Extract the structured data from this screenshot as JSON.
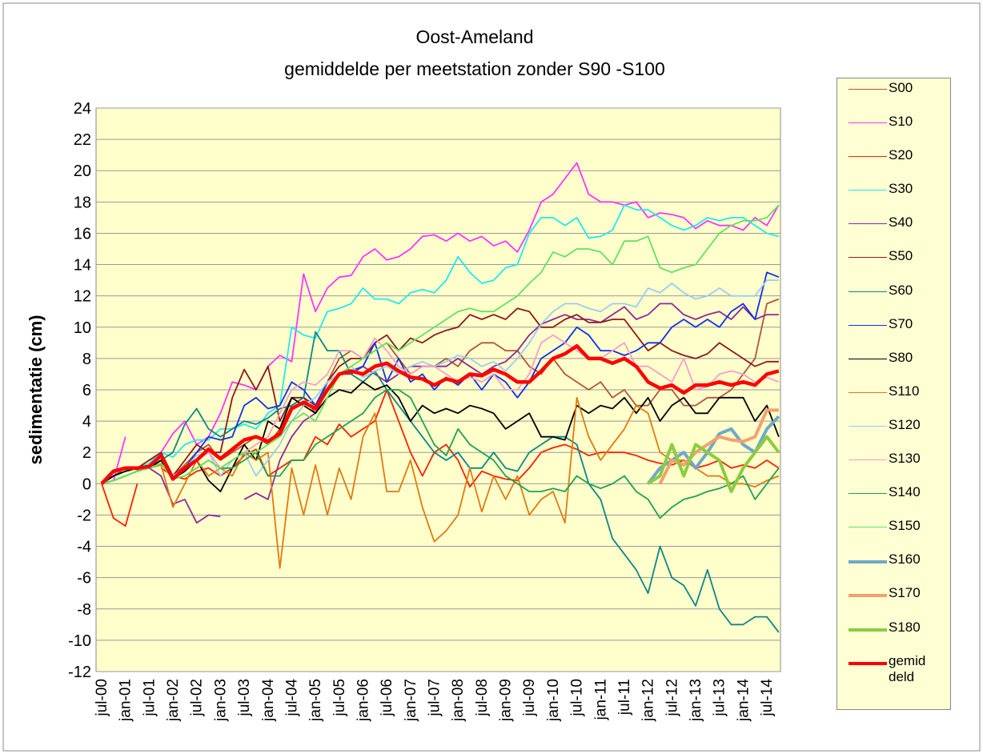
{
  "chart_data": {
    "type": "line",
    "title": "Oost-Ameland",
    "subtitle": "gemiddelde per meetstation zonder S90 -S100",
    "y_label": "sedimentatie (cm)",
    "ylim": [
      -12,
      24
    ],
    "yticks": [
      -12,
      -10,
      -8,
      -6,
      -4,
      -2,
      0,
      2,
      4,
      6,
      8,
      10,
      12,
      14,
      16,
      18,
      20,
      22,
      24
    ],
    "grid": true,
    "categories": [
      "jul-00",
      null,
      "jan-01",
      null,
      "jul-01",
      null,
      "jan-02",
      null,
      "jul-02",
      null,
      "jan-03",
      null,
      "jul-03",
      null,
      "jan-04",
      null,
      "jul-04",
      null,
      "jan-05",
      null,
      "jul-05",
      null,
      "jan-06",
      null,
      "jul-06",
      null,
      "jan-07",
      null,
      "jul-07",
      null,
      "jan-08",
      null,
      "jul-08",
      null,
      "jan-09",
      null,
      "jul-09",
      null,
      "jan-10",
      null,
      "jul-10",
      null,
      "jan-11",
      null,
      "jul-11",
      null,
      "jan-12",
      null,
      "jul-12",
      null,
      "jan-13",
      null,
      "jul-13",
      null,
      "jan-14",
      null,
      "jul-14",
      null
    ],
    "series": [
      {
        "name": "S00",
        "color": "#b0553a",
        "values": [
          0,
          0.5,
          1,
          0.9,
          1,
          1.5,
          0.5,
          1.2,
          2,
          2.5,
          1.5,
          2,
          2.5,
          3,
          2.5,
          3.5,
          5,
          5.5,
          4.5,
          6.5,
          8,
          8.5,
          8,
          8.5,
          9,
          8,
          7,
          7.5,
          7.5,
          8,
          7.5,
          8.5,
          9,
          9,
          8.5,
          8.5,
          7.5,
          7,
          8,
          7,
          6.5,
          6,
          6.5,
          5.5,
          6,
          5,
          5,
          6,
          6,
          5,
          5,
          5.5,
          5.5,
          6,
          7,
          8,
          11.5,
          11.8
        ]
      },
      {
        "name": "S10",
        "color": "#ff33ff",
        "values": [
          0,
          0.2,
          3,
          null,
          1.5,
          2,
          3.2,
          4,
          2.5,
          3,
          4.5,
          6.5,
          6.3,
          6,
          7.5,
          8.2,
          7.8,
          13.4,
          11,
          12.5,
          13.2,
          13.3,
          14.5,
          15,
          14.3,
          14.5,
          15,
          15.8,
          15.9,
          15.5,
          16,
          15.5,
          15.8,
          15.2,
          15.5,
          14.8,
          16.2,
          18,
          18.5,
          19.5,
          20.5,
          18.5,
          18,
          18,
          17.8,
          18,
          17,
          17.3,
          17.2,
          17,
          16.3,
          16.8,
          16.5,
          16.5,
          16.2,
          17,
          16.5,
          17.8
        ]
      },
      {
        "name": "S20",
        "color": "#ff2000",
        "values": [
          0,
          -2.2,
          -2.7,
          0,
          null,
          1,
          0.5,
          0.3,
          0.8,
          1,
          0.5,
          1,
          1.8,
          2.2,
          0.5,
          1,
          1.5,
          1.5,
          3,
          2.5,
          3.8,
          3,
          3.5,
          4,
          6,
          4,
          2,
          0.5,
          2,
          2.5,
          1.5,
          -0.2,
          0.8,
          0.5,
          0.3,
          0.2,
          1,
          2,
          2.3,
          2.5,
          2.2,
          1.8,
          2,
          2,
          2,
          1.8,
          1.5,
          1.3,
          1.2,
          1.5,
          1,
          1.2,
          1.5,
          1,
          1.2,
          1,
          1.5,
          1
        ]
      },
      {
        "name": "S30",
        "color": "#22e8f0",
        "values": [
          0,
          0.5,
          0.8,
          1,
          1.3,
          2,
          1.7,
          2.5,
          2.8,
          2.8,
          3.5,
          3.5,
          3.8,
          3.5,
          4.5,
          5,
          10,
          9.5,
          9.3,
          11,
          11.2,
          11.5,
          12.5,
          11.8,
          11.8,
          11.5,
          12.2,
          12.4,
          12.2,
          13,
          14.5,
          13.5,
          12.8,
          13,
          13.8,
          14,
          16,
          17,
          17,
          16.5,
          17,
          15.7,
          15.8,
          16.2,
          17.8,
          17.5,
          17.5,
          17,
          16.5,
          16.2,
          16.5,
          17,
          16.8,
          17,
          17,
          16.5,
          16,
          15.8
        ]
      },
      {
        "name": "S40",
        "color": "#8a2a9a",
        "values": [
          0,
          0.2,
          0.5,
          0.8,
          1,
          0.5,
          -1.3,
          -1,
          -2.5,
          -2,
          -2.1,
          null,
          -1,
          -0.6,
          -1,
          1.5,
          3,
          4,
          4.5,
          6,
          7,
          7,
          7.5,
          7,
          6.5,
          7,
          7.5,
          7.5,
          7.5,
          7.5,
          8,
          7.5,
          7,
          7.5,
          7.8,
          8.5,
          9.5,
          10.2,
          10.5,
          10.8,
          10.5,
          10.5,
          10.3,
          10.8,
          11.3,
          10.5,
          10.8,
          11.5,
          11.5,
          10.8,
          10.5,
          10.8,
          11,
          10.5,
          11.3,
          10.5,
          10.8,
          10.8
        ]
      },
      {
        "name": "S50",
        "color": "#8b1a1a",
        "values": [
          0,
          0.5,
          0.8,
          1,
          1.5,
          2,
          0.5,
          1.5,
          2.5,
          2,
          2,
          5.5,
          7.3,
          6,
          7.5,
          4,
          5.5,
          5.5,
          5,
          6.5,
          7.5,
          8,
          8,
          9,
          9.5,
          8.5,
          9.3,
          9,
          9.5,
          9.8,
          10,
          10.8,
          10.5,
          10.8,
          10.5,
          11.2,
          11,
          10,
          10,
          10.5,
          10.8,
          10.3,
          10.3,
          10.5,
          10.5,
          9.5,
          8.5,
          9,
          8.5,
          8.2,
          8,
          8.3,
          9,
          8.5,
          8,
          7.5,
          7.8,
          7.8
        ]
      },
      {
        "name": "S60",
        "color": "#0e8585",
        "values": [
          0,
          0.5,
          0.8,
          1,
          1,
          1.5,
          2,
          3.8,
          4.8,
          3.5,
          3,
          3.5,
          4,
          3.8,
          4.2,
          4.8,
          5,
          5.5,
          9.7,
          8.5,
          8.5,
          7,
          6.5,
          7.2,
          6,
          5,
          4,
          3,
          2,
          1.5,
          2,
          1,
          1,
          2,
          1,
          0.8,
          2,
          2.5,
          3,
          3,
          2.5,
          0,
          -1,
          -3.5,
          -4.5,
          -5.5,
          -7,
          -4,
          -6,
          -6.5,
          -7.8,
          -5.5,
          -8,
          -9,
          -9,
          -8.5,
          -8.5,
          -9.5
        ]
      },
      {
        "name": "S70",
        "color": "#1030e8",
        "values": [
          0,
          0.5,
          0.8,
          1,
          1,
          1.5,
          0.5,
          1,
          2,
          3,
          2.8,
          3,
          5,
          5.5,
          4.8,
          5,
          6.5,
          6,
          5,
          6.5,
          7,
          7.2,
          7.5,
          9,
          6.5,
          8,
          6.5,
          7,
          6,
          6.8,
          6.3,
          7,
          6,
          7,
          6.5,
          5.5,
          6.5,
          8,
          8.5,
          9,
          10,
          9.5,
          8.5,
          8.5,
          8.2,
          8.5,
          9,
          9,
          10,
          10.5,
          10,
          10.5,
          10,
          11,
          11.5,
          10.5,
          13.5,
          13.2
        ]
      },
      {
        "name": "S80",
        "color": "#000000",
        "values": [
          0,
          0.5,
          0.8,
          1,
          1,
          1.5,
          0.3,
          0.8,
          1.5,
          0.2,
          -0.5,
          1,
          2.5,
          1.5,
          4,
          3.5,
          5.5,
          5,
          4.5,
          5.5,
          6,
          5.8,
          6.5,
          6,
          6.3,
          5.5,
          4,
          5,
          4.5,
          4.8,
          4.5,
          5,
          4.8,
          4.5,
          3.5,
          4,
          4.5,
          3,
          3,
          2.8,
          5,
          4.5,
          5,
          4.8,
          5.5,
          4.5,
          5.5,
          4,
          5,
          5.5,
          4.5,
          4.5,
          5.5,
          5.5,
          5.5,
          4,
          5,
          3
        ]
      },
      {
        "name": "S110",
        "color": "#e07a10",
        "values": [
          0,
          0.2,
          0.5,
          0.8,
          1,
          1.2,
          -1.5,
          0,
          1.5,
          0.5,
          1,
          0.5,
          2,
          1.5,
          2,
          -5.4,
          1,
          -2,
          1.2,
          -2,
          1,
          -1,
          3,
          4.5,
          -0.5,
          -0.5,
          1.5,
          -1.5,
          -3.7,
          -3,
          -2,
          1,
          -1.8,
          0.5,
          -1,
          0.5,
          -2,
          -1,
          -0.5,
          -2.5,
          5.5,
          3,
          1.5,
          2.5,
          3.5,
          5,
          4.5,
          2,
          1.5,
          1.5,
          1,
          0.5,
          0.5,
          0,
          0,
          -0.2,
          0.2,
          0.5
        ]
      },
      {
        "name": "S120",
        "color": "#9ccbf0",
        "values": [
          0,
          0.2,
          0.5,
          0.8,
          1,
          1.3,
          0.5,
          1,
          1.8,
          2,
          0.5,
          1.5,
          2,
          0.5,
          1.5,
          2.5,
          4,
          5,
          5.5,
          6.5,
          7,
          7.5,
          6.8,
          7.2,
          7.5,
          7,
          7.5,
          7.8,
          7.5,
          7.8,
          8.2,
          8,
          7.5,
          7.8,
          7.2,
          8,
          9,
          10.2,
          11,
          11.5,
          11.5,
          11.2,
          11,
          11.5,
          11.5,
          11.3,
          12.5,
          12.2,
          12.8,
          12.2,
          11.8,
          12,
          12.5,
          12,
          12,
          12,
          13,
          13
        ]
      },
      {
        "name": "S130",
        "color": "#f4a0c8",
        "values": [
          0,
          0.2,
          0.5,
          0.8,
          1,
          1.3,
          0.3,
          1,
          1.5,
          2,
          1,
          1.5,
          2,
          2.5,
          3,
          4.5,
          6,
          6.5,
          6.3,
          7,
          8.5,
          8.5,
          8,
          9.3,
          8.5,
          7.5,
          7,
          7.5,
          7.5,
          7,
          6.5,
          6.8,
          6.5,
          7,
          6,
          6,
          7,
          9,
          9.5,
          9,
          8.5,
          8,
          8,
          8.5,
          9,
          7.5,
          7.5,
          7,
          6.5,
          8,
          6,
          6.2,
          7,
          7.2,
          7,
          6.5,
          6.8,
          6.5
        ]
      },
      {
        "name": "S140",
        "color": "#22a050",
        "values": [
          0,
          0.2,
          0.5,
          0.8,
          1,
          1.3,
          0.3,
          0.5,
          1,
          1.5,
          1,
          1,
          1.5,
          2,
          0.5,
          0.5,
          1.5,
          1.5,
          2.5,
          3,
          3.5,
          4,
          4.5,
          5.5,
          6,
          6,
          5.5,
          4,
          2.5,
          1.8,
          3.5,
          2.5,
          2,
          1.5,
          0.5,
          0,
          -0.5,
          -0.5,
          -0.3,
          -0.5,
          0.5,
          0,
          -0.3,
          0,
          0.5,
          -0.5,
          -1,
          -2.2,
          -1.5,
          -1,
          -0.8,
          -0.5,
          -0.3,
          0,
          0.5,
          -1,
          0,
          1
        ]
      },
      {
        "name": "S150",
        "color": "#66e060",
        "values": [
          0,
          0.2,
          0.5,
          0.8,
          1,
          1.3,
          0.3,
          0.5,
          1,
          1.5,
          1,
          1.5,
          2,
          2,
          2.5,
          3,
          4,
          4.5,
          4,
          5.5,
          7,
          7.5,
          8,
          8.5,
          9,
          8.5,
          9,
          9.5,
          10,
          10.5,
          11,
          11.2,
          11,
          11,
          11.5,
          12,
          12.8,
          13.5,
          14.8,
          14.5,
          15,
          15,
          14.8,
          14,
          15.5,
          15.5,
          15.8,
          13.8,
          13.5,
          13.8,
          14,
          15,
          16,
          16.5,
          16.8,
          16.8,
          17,
          17.8
        ]
      },
      {
        "name": "S160",
        "color": "#6fa8c8",
        "values": [
          null,
          null,
          null,
          null,
          null,
          null,
          null,
          null,
          null,
          null,
          null,
          null,
          null,
          null,
          null,
          null,
          null,
          null,
          null,
          null,
          null,
          null,
          null,
          null,
          null,
          null,
          null,
          null,
          null,
          null,
          null,
          null,
          null,
          null,
          null,
          null,
          null,
          null,
          null,
          null,
          null,
          null,
          null,
          null,
          null,
          null,
          0,
          1,
          1.5,
          2,
          1,
          2,
          3.2,
          3.5,
          2.5,
          2,
          3.5,
          4.3
        ]
      },
      {
        "name": "S170",
        "color": "#f4a070",
        "values": [
          null,
          null,
          null,
          null,
          null,
          null,
          null,
          null,
          null,
          null,
          null,
          null,
          null,
          null,
          null,
          null,
          null,
          null,
          null,
          null,
          null,
          null,
          null,
          null,
          null,
          null,
          null,
          null,
          null,
          null,
          null,
          null,
          null,
          null,
          null,
          null,
          null,
          null,
          null,
          null,
          null,
          null,
          null,
          null,
          null,
          null,
          null,
          0,
          1.5,
          1.2,
          2,
          2.5,
          3,
          2.8,
          2.7,
          3,
          4.7,
          4.7
        ]
      },
      {
        "name": "S180",
        "color": "#8ccc40",
        "values": [
          null,
          null,
          null,
          null,
          null,
          null,
          null,
          null,
          null,
          null,
          null,
          null,
          null,
          null,
          null,
          null,
          null,
          null,
          null,
          null,
          null,
          null,
          null,
          null,
          null,
          null,
          null,
          null,
          null,
          null,
          null,
          null,
          null,
          null,
          null,
          null,
          null,
          null,
          null,
          null,
          null,
          null,
          null,
          null,
          null,
          null,
          0,
          0.5,
          2.5,
          0.5,
          2.5,
          2,
          1.5,
          -0.5,
          1,
          2,
          3,
          2
        ]
      },
      {
        "name": "gemiddeld",
        "color": "#ff0000",
        "values": [
          0,
          0.8,
          1,
          1,
          1.1,
          1.8,
          0.3,
          1,
          1.5,
          2.2,
          1.6,
          2.2,
          2.8,
          3,
          2.7,
          3.2,
          4.8,
          5.2,
          4.8,
          6,
          7,
          7.2,
          7,
          7.5,
          7.7,
          7.2,
          6.8,
          6.7,
          6.3,
          6.7,
          6.5,
          7,
          6.9,
          7.3,
          7,
          6.5,
          6.5,
          7.2,
          8,
          8.3,
          8.8,
          8,
          8,
          7.7,
          8,
          7.5,
          6.5,
          6.1,
          6.3,
          5.8,
          6.3,
          6.3,
          6.5,
          6.3,
          6.5,
          6.3,
          7,
          7.2
        ]
      }
    ]
  }
}
